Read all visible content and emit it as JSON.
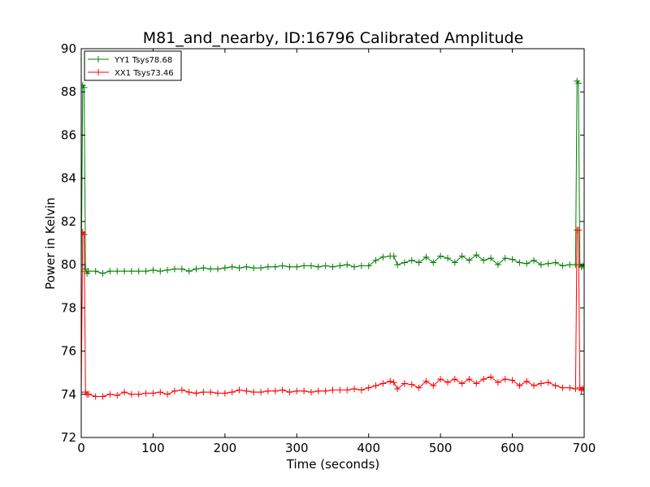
{
  "chart_data": {
    "type": "line",
    "title": "M81_and_nearby, ID:16796 Calibrated Amplitude",
    "xlabel": "Time (seconds)",
    "ylabel": "Power in Kelvin",
    "xlim": [
      0,
      700
    ],
    "ylim": [
      72,
      90
    ],
    "xticks": [
      "0",
      "100",
      "200",
      "300",
      "400",
      "500",
      "600",
      "700"
    ],
    "yticks": [
      "72",
      "74",
      "76",
      "78",
      "80",
      "82",
      "84",
      "86",
      "88",
      "90"
    ],
    "grid": false,
    "legend": "top-left",
    "series": [
      {
        "name": "YY1 Tsys78.68",
        "color": "#008000",
        "marker": "+",
        "x": [
          0,
          2,
          4,
          6,
          8,
          10,
          20,
          30,
          40,
          50,
          60,
          70,
          80,
          90,
          100,
          110,
          120,
          130,
          140,
          150,
          160,
          170,
          180,
          190,
          200,
          210,
          220,
          230,
          240,
          250,
          260,
          270,
          280,
          290,
          300,
          310,
          320,
          330,
          340,
          350,
          360,
          370,
          380,
          390,
          400,
          410,
          420,
          430,
          435,
          440,
          450,
          460,
          470,
          480,
          490,
          500,
          510,
          520,
          530,
          540,
          550,
          560,
          570,
          580,
          590,
          600,
          610,
          620,
          630,
          640,
          650,
          660,
          670,
          680,
          688,
          690,
          692,
          694,
          696,
          698,
          700
        ],
        "y": [
          79.7,
          88.3,
          88.2,
          79.8,
          79.6,
          79.7,
          79.7,
          79.6,
          79.7,
          79.7,
          79.7,
          79.7,
          79.7,
          79.7,
          79.75,
          79.7,
          79.75,
          79.8,
          79.8,
          79.7,
          79.8,
          79.85,
          79.8,
          79.8,
          79.85,
          79.9,
          79.85,
          79.9,
          79.85,
          79.85,
          79.9,
          79.9,
          79.95,
          79.9,
          79.9,
          79.95,
          79.95,
          79.9,
          79.95,
          79.9,
          79.95,
          80.0,
          79.9,
          79.95,
          79.95,
          80.2,
          80.35,
          80.4,
          80.4,
          80.0,
          80.1,
          80.2,
          80.1,
          80.35,
          80.1,
          80.4,
          80.3,
          80.1,
          80.4,
          80.2,
          80.45,
          80.2,
          80.3,
          80.0,
          80.3,
          80.25,
          80.1,
          80.05,
          80.2,
          80.0,
          80.05,
          80.1,
          79.95,
          80.0,
          80.0,
          88.5,
          88.4,
          80.0,
          79.9,
          79.95,
          80.0
        ]
      },
      {
        "name": "XX1 Tsys73.46",
        "color": "#ff0000",
        "marker": "+",
        "x": [
          0,
          2,
          4,
          6,
          8,
          10,
          20,
          30,
          40,
          50,
          60,
          70,
          80,
          90,
          100,
          110,
          120,
          130,
          140,
          150,
          160,
          170,
          180,
          190,
          200,
          210,
          220,
          230,
          240,
          250,
          260,
          270,
          280,
          290,
          300,
          310,
          320,
          330,
          340,
          350,
          360,
          370,
          380,
          390,
          400,
          410,
          420,
          430,
          435,
          440,
          450,
          460,
          470,
          480,
          490,
          500,
          510,
          520,
          530,
          540,
          550,
          560,
          570,
          580,
          590,
          600,
          610,
          620,
          630,
          640,
          650,
          660,
          670,
          680,
          688,
          690,
          692,
          694,
          696,
          698,
          700
        ],
        "y": [
          74.1,
          81.5,
          81.4,
          74.1,
          74.0,
          74.0,
          73.9,
          73.9,
          74.0,
          73.95,
          74.1,
          74.0,
          74.0,
          74.05,
          74.05,
          74.1,
          74.0,
          74.15,
          74.2,
          74.1,
          74.05,
          74.1,
          74.1,
          74.05,
          74.05,
          74.1,
          74.2,
          74.15,
          74.1,
          74.1,
          74.15,
          74.15,
          74.2,
          74.1,
          74.15,
          74.15,
          74.1,
          74.15,
          74.15,
          74.2,
          74.2,
          74.2,
          74.25,
          74.2,
          74.3,
          74.4,
          74.5,
          74.6,
          74.55,
          74.25,
          74.5,
          74.45,
          74.3,
          74.6,
          74.4,
          74.7,
          74.55,
          74.7,
          74.5,
          74.7,
          74.5,
          74.7,
          74.8,
          74.55,
          74.7,
          74.65,
          74.4,
          74.6,
          74.4,
          74.5,
          74.55,
          74.4,
          74.3,
          74.3,
          74.25,
          81.6,
          81.6,
          74.3,
          74.2,
          74.25,
          74.3
        ]
      }
    ]
  }
}
